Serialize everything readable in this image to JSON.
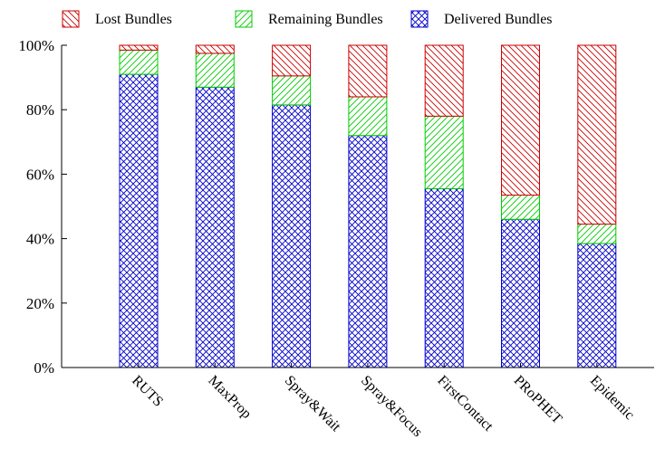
{
  "chart_data": {
    "type": "bar",
    "stacked": true,
    "percent_scale": true,
    "categories": [
      "RUTS",
      "MaxProp",
      "Spray&Wait",
      "Spray&Focus",
      "FirstContact",
      "PRoPHET",
      "Epidemic"
    ],
    "series": [
      {
        "name": "Delivered Bundles",
        "values": [
          91,
          87,
          81.5,
          72,
          55.5,
          46,
          38.5
        ]
      },
      {
        "name": "Remaining Bundles",
        "values": [
          7.5,
          10.5,
          9,
          12,
          22.5,
          7.5,
          6
        ]
      },
      {
        "name": "Lost Bundles",
        "values": [
          1.5,
          2.5,
          9.5,
          16,
          22,
          46.5,
          55.5
        ]
      }
    ],
    "legend_order": [
      "Lost Bundles",
      "Remaining Bundles",
      "Delivered Bundles"
    ],
    "legend_position": "top",
    "ylim": [
      0,
      100
    ],
    "yticks": [
      "0%",
      "20%",
      "40%",
      "60%",
      "80%",
      "100%"
    ],
    "xlabel": "",
    "ylabel": "",
    "title": "",
    "grid": false,
    "colors": {
      "Delivered Bundles": "#0000cc",
      "Remaining Bundles": "#00cc00",
      "Lost Bundles": "#cc0000"
    },
    "patterns": {
      "Delivered Bundles": "crosshatch",
      "Remaining Bundles": "diagonal-up",
      "Lost Bundles": "diagonal-down"
    }
  }
}
